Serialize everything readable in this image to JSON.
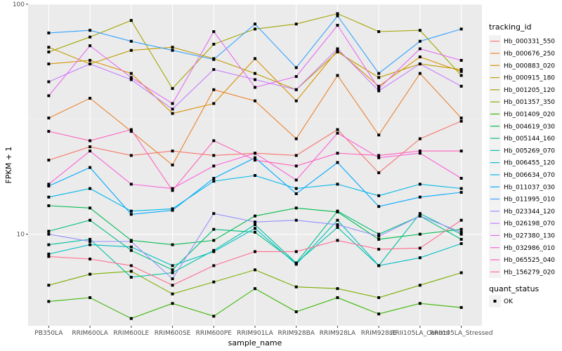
{
  "chart_data": {
    "type": "line",
    "xlabel": "sample_name",
    "ylabel": "FPKM + 1",
    "y_scale": "log10",
    "ylim": [
      4,
      100
    ],
    "y_ticks": [
      {
        "value": 10,
        "label": "10"
      },
      {
        "value": 100,
        "label": "100"
      }
    ],
    "grid": true,
    "legend_position": "right",
    "categories": [
      "PB350LA",
      "RRIM600LA",
      "RRIM600LE",
      "RRIM600SE",
      "RRIM600PE",
      "RRIM901LA",
      "RRIM928BA",
      "RRIM928LA",
      "RRIM928LE",
      "RRII105LA_Control",
      "RRII105LA_Stressed"
    ],
    "color_legend_title": "tracking_id",
    "shape_legend": {
      "title": "quant_status",
      "entries": [
        "OK"
      ]
    },
    "series": [
      {
        "name": "Hb_000331_550",
        "color": "#F8766D",
        "values": [
          21.0,
          24.0,
          22.0,
          23.0,
          22.0,
          22.5,
          22.0,
          28.5,
          18.5,
          26.0,
          31.0
        ]
      },
      {
        "name": "Hb_000676_250",
        "color": "#EA8331",
        "values": [
          32.0,
          39.0,
          28.0,
          20.0,
          42.5,
          38.0,
          26.0,
          49.0,
          27.0,
          50.0,
          32.0
        ]
      },
      {
        "name": "Hb_000883_020",
        "color": "#D89000",
        "values": [
          55.0,
          57.0,
          50.0,
          33.5,
          37.0,
          58.0,
          38.0,
          63.0,
          44.0,
          59.0,
          51.0
        ]
      },
      {
        "name": "Hb_000915_180",
        "color": "#C09B00",
        "values": [
          65.0,
          55.0,
          63.0,
          65.0,
          58.0,
          50.0,
          42.5,
          62.0,
          48.0,
          55.0,
          52.0
        ]
      },
      {
        "name": "Hb_001205_120",
        "color": "#A3A500",
        "values": [
          62.0,
          72.0,
          85.0,
          43.0,
          67.0,
          78.0,
          82.0,
          91.0,
          76.0,
          77.0,
          49.0
        ]
      },
      {
        "name": "Hb_001357_350",
        "color": "#7CAE00",
        "values": [
          6.0,
          6.7,
          6.9,
          5.5,
          6.2,
          7.0,
          5.9,
          5.8,
          5.3,
          6.0,
          6.8
        ]
      },
      {
        "name": "Hb_001409_020",
        "color": "#39B600",
        "values": [
          5.1,
          5.3,
          4.3,
          5.0,
          4.4,
          5.8,
          4.6,
          5.3,
          4.5,
          5.0,
          4.8
        ]
      },
      {
        "name": "Hb_004619_030",
        "color": "#00BB4E",
        "values": [
          13.3,
          13.0,
          9.4,
          9.0,
          9.4,
          12.0,
          13.0,
          12.5,
          9.5,
          10.0,
          10.5
        ]
      },
      {
        "name": "Hb_005144_160",
        "color": "#00BF7D",
        "values": [
          10.3,
          11.5,
          8.5,
          7.0,
          10.5,
          10.2,
          7.5,
          12.6,
          10.0,
          12.0,
          9.5
        ]
      },
      {
        "name": "Hb_005269_070",
        "color": "#00C1A3",
        "values": [
          9.0,
          9.5,
          6.5,
          6.8,
          8.5,
          11.0,
          7.5,
          10.7,
          7.3,
          12.3,
          10.0
        ]
      },
      {
        "name": "Hb_006455_120",
        "color": "#00BFC4",
        "values": [
          8.2,
          9.0,
          8.8,
          7.3,
          8.4,
          10.6,
          7.4,
          11.5,
          7.3,
          7.9,
          9.1
        ]
      },
      {
        "name": "Hb_006634_070",
        "color": "#00B8E7",
        "values": [
          14.5,
          15.8,
          12.6,
          12.9,
          17.0,
          18.0,
          15.8,
          16.5,
          14.7,
          16.5,
          15.8
        ]
      },
      {
        "name": "Hb_011037_030",
        "color": "#00A9FF",
        "values": [
          16.2,
          19.5,
          12.2,
          12.7,
          17.5,
          21.5,
          15.0,
          20.5,
          13.2,
          14.5,
          15.2
        ]
      },
      {
        "name": "Hb_011995_010",
        "color": "#35A2FF",
        "values": [
          75.0,
          77.0,
          69.0,
          63.0,
          57.5,
          82.0,
          53.0,
          89.0,
          50.0,
          69.0,
          78.0
        ]
      },
      {
        "name": "Hb_023344_120",
        "color": "#9590FF",
        "values": [
          10.0,
          9.3,
          9.3,
          6.4,
          12.3,
          11.3,
          11.5,
          11.0,
          9.8,
          12.0,
          10.2
        ]
      },
      {
        "name": "Hb_026198_070",
        "color": "#C77CFF",
        "values": [
          46.0,
          55.0,
          47.0,
          35.0,
          52.0,
          47.0,
          42.5,
          64.0,
          42.0,
          55.0,
          44.0
        ]
      },
      {
        "name": "Hb_027380_130",
        "color": "#E76BF3",
        "values": [
          40.0,
          66.0,
          48.0,
          37.0,
          76.0,
          43.5,
          48.5,
          81.0,
          43.0,
          64.0,
          57.0
        ]
      },
      {
        "name": "Hb_032986_010",
        "color": "#FA62DB",
        "values": [
          16.5,
          23.0,
          16.5,
          15.8,
          19.8,
          22.5,
          17.2,
          27.5,
          21.5,
          22.5,
          17.5
        ]
      },
      {
        "name": "Hb_065525_040",
        "color": "#FF62BC",
        "values": [
          28.0,
          25.5,
          28.5,
          15.5,
          25.5,
          21.0,
          19.8,
          22.5,
          22.0,
          23.0,
          23.0
        ]
      },
      {
        "name": "Hb_156279_020",
        "color": "#FF6C91",
        "values": [
          8.0,
          7.8,
          7.3,
          6.0,
          7.3,
          8.4,
          8.4,
          9.4,
          8.6,
          8.7,
          11.5
        ]
      }
    ]
  }
}
